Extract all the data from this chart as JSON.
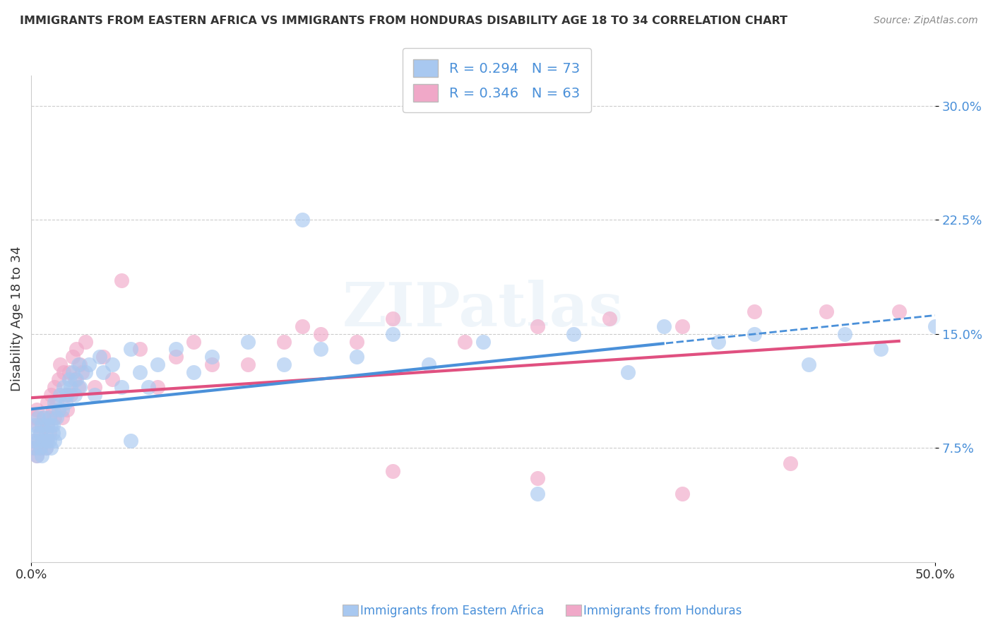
{
  "title": "IMMIGRANTS FROM EASTERN AFRICA VS IMMIGRANTS FROM HONDURAS DISABILITY AGE 18 TO 34 CORRELATION CHART",
  "source": "Source: ZipAtlas.com",
  "ylabel": "Disability Age 18 to 34",
  "xlim": [
    0.0,
    50.0
  ],
  "ylim": [
    0.0,
    32.0
  ],
  "yticks": [
    7.5,
    15.0,
    22.5,
    30.0
  ],
  "ytick_labels": [
    "7.5%",
    "15.0%",
    "22.5%",
    "30.0%"
  ],
  "grid_color": "#cccccc",
  "background_color": "#ffffff",
  "blue_scatter_x": [
    0.1,
    0.2,
    0.2,
    0.3,
    0.3,
    0.4,
    0.4,
    0.5,
    0.5,
    0.6,
    0.6,
    0.7,
    0.7,
    0.8,
    0.8,
    0.9,
    0.9,
    1.0,
    1.0,
    1.1,
    1.1,
    1.2,
    1.2,
    1.3,
    1.3,
    1.4,
    1.5,
    1.5,
    1.6,
    1.7,
    1.8,
    1.9,
    2.0,
    2.1,
    2.2,
    2.3,
    2.4,
    2.5,
    2.6,
    2.7,
    3.0,
    3.2,
    3.5,
    3.8,
    4.0,
    4.5,
    5.0,
    5.5,
    6.0,
    7.0,
    8.0,
    9.0,
    10.0,
    12.0,
    14.0,
    16.0,
    18.0,
    20.0,
    25.0,
    30.0,
    35.0,
    40.0,
    45.0,
    50.0,
    15.0,
    22.0,
    28.0,
    33.0,
    38.0,
    43.0,
    47.0,
    5.5,
    6.5
  ],
  "blue_scatter_y": [
    8.0,
    7.5,
    9.0,
    8.5,
    7.0,
    8.0,
    9.5,
    7.5,
    8.5,
    9.0,
    7.0,
    8.0,
    9.5,
    8.5,
    7.5,
    9.0,
    8.0,
    9.5,
    8.0,
    9.0,
    7.5,
    8.5,
    9.0,
    8.0,
    10.5,
    9.5,
    10.0,
    8.5,
    11.0,
    10.0,
    11.5,
    10.5,
    11.0,
    12.0,
    11.5,
    12.5,
    11.0,
    12.0,
    13.0,
    11.5,
    12.5,
    13.0,
    11.0,
    13.5,
    12.5,
    13.0,
    11.5,
    14.0,
    12.5,
    13.0,
    14.0,
    12.5,
    13.5,
    14.5,
    13.0,
    14.0,
    13.5,
    15.0,
    14.5,
    15.0,
    15.5,
    15.0,
    15.0,
    15.5,
    22.5,
    13.0,
    4.5,
    12.5,
    14.5,
    13.0,
    14.0,
    8.0,
    11.5
  ],
  "pink_scatter_x": [
    0.1,
    0.2,
    0.2,
    0.3,
    0.3,
    0.4,
    0.5,
    0.5,
    0.6,
    0.6,
    0.7,
    0.8,
    0.8,
    0.9,
    0.9,
    1.0,
    1.0,
    1.1,
    1.2,
    1.3,
    1.3,
    1.4,
    1.5,
    1.6,
    1.7,
    1.8,
    1.9,
    2.0,
    2.1,
    2.2,
    2.3,
    2.4,
    2.5,
    2.6,
    2.7,
    2.8,
    3.0,
    3.5,
    4.0,
    4.5,
    5.0,
    6.0,
    7.0,
    8.0,
    9.0,
    10.0,
    12.0,
    14.0,
    16.0,
    18.0,
    20.0,
    24.0,
    28.0,
    32.0,
    36.0,
    40.0,
    44.0,
    48.0,
    42.0,
    36.0,
    28.0,
    20.0,
    15.0
  ],
  "pink_scatter_y": [
    7.5,
    8.0,
    9.5,
    7.0,
    10.0,
    9.0,
    8.5,
    7.5,
    9.0,
    8.0,
    9.5,
    8.0,
    7.5,
    10.5,
    9.0,
    8.5,
    9.5,
    11.0,
    10.0,
    9.5,
    11.5,
    10.5,
    12.0,
    13.0,
    9.5,
    12.5,
    11.0,
    10.0,
    12.5,
    11.0,
    13.5,
    12.0,
    14.0,
    11.5,
    13.0,
    12.5,
    14.5,
    11.5,
    13.5,
    12.0,
    18.5,
    14.0,
    11.5,
    13.5,
    14.5,
    13.0,
    13.0,
    14.5,
    15.0,
    14.5,
    16.0,
    14.5,
    15.5,
    16.0,
    15.5,
    16.5,
    16.5,
    16.5,
    6.5,
    4.5,
    5.5,
    6.0,
    15.5
  ],
  "blue_color": "#a8c8f0",
  "pink_color": "#f0a8c8",
  "trend_color_blue": "#4a90d9",
  "trend_color_pink": "#e05080",
  "legend_label1": "R = 0.294   N = 73",
  "legend_label2": "R = 0.346   N = 63",
  "watermark_text": "ZIPatlas",
  "bottom_label1": "Immigrants from Eastern Africa",
  "bottom_label2": "Immigrants from Honduras"
}
